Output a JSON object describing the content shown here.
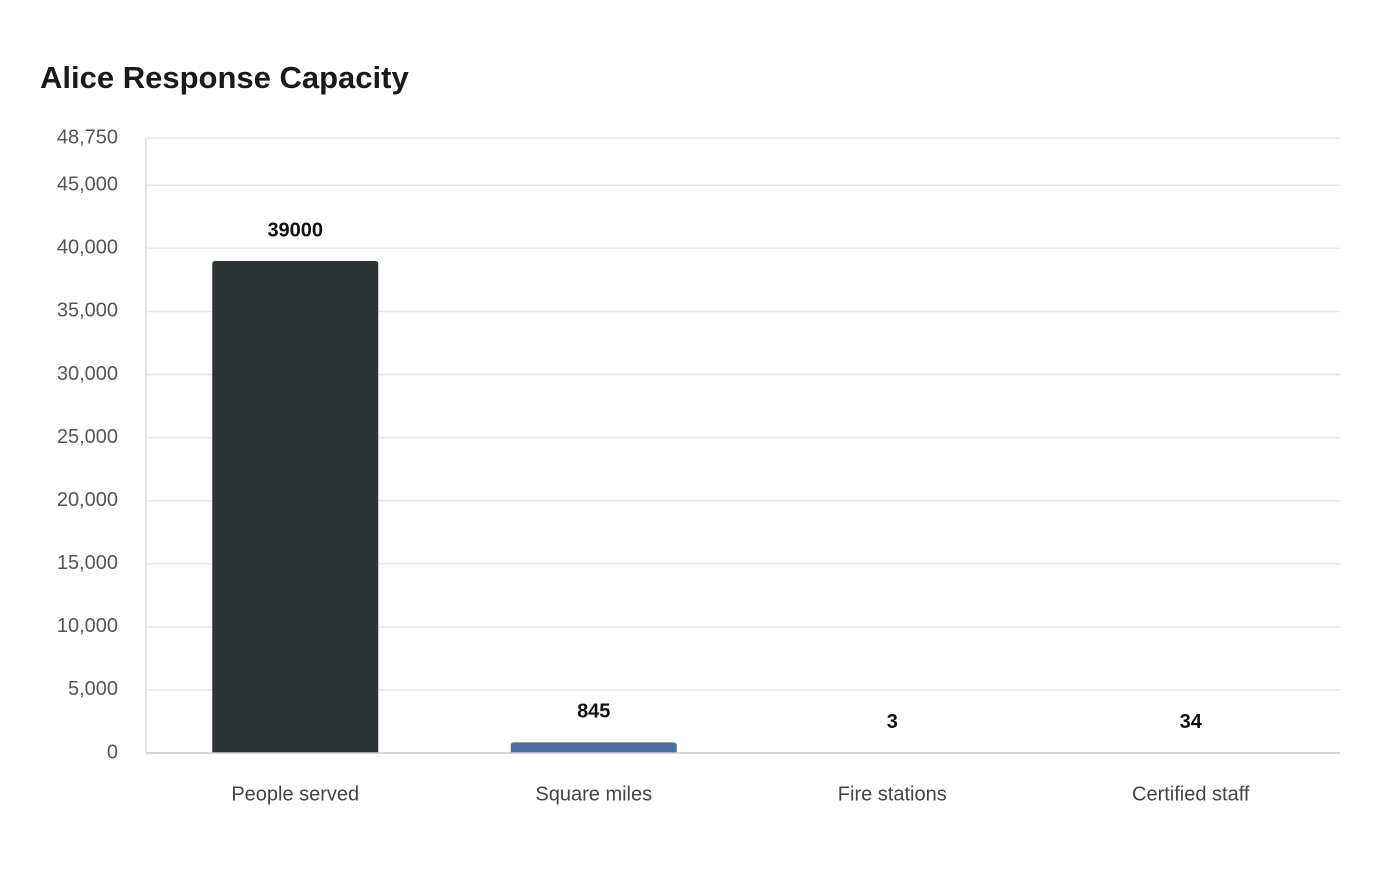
{
  "chart_data": {
    "type": "bar",
    "title": "Alice Response Capacity",
    "categories": [
      "People served",
      "Square miles",
      "Fire stations",
      "Certified staff"
    ],
    "values": [
      39000,
      845,
      3,
      34
    ],
    "colors": [
      "#2e3436",
      "#4a6fa5",
      "#999999",
      "#bbbbbb"
    ],
    "ylim": [
      0,
      48750
    ],
    "yticks": [
      0,
      {
        "value": 5000,
        "label": "5,000"
      },
      {
        "value": 10000,
        "label": "10,000"
      },
      {
        "value": 15000,
        "label": "15,000"
      },
      {
        "value": 20000,
        "label": "20,000"
      },
      {
        "value": 25000,
        "label": "25,000"
      },
      {
        "value": 30000,
        "label": "30,000"
      },
      {
        "value": 35000,
        "label": "35,000"
      },
      {
        "value": 40000,
        "label": "40,000"
      },
      {
        "value": 45000,
        "label": "45,000"
      },
      {
        "value": 48750,
        "label": "48,750"
      }
    ],
    "grid": true
  }
}
